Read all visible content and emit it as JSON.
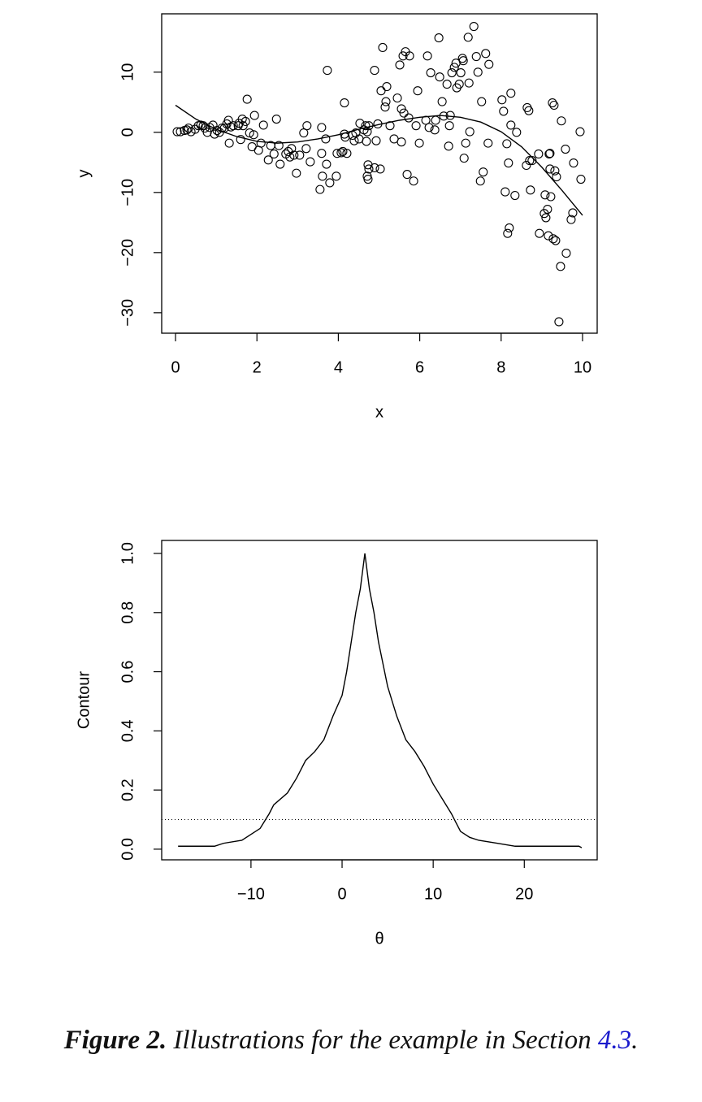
{
  "chart_data": [
    {
      "type": "scatter",
      "x_label": "x",
      "y_label": "y",
      "xlim": [
        -0.34,
        10.36
      ],
      "ylim": [
        -33.4,
        19.7
      ],
      "xticks": [
        0,
        2,
        4,
        6,
        8,
        10
      ],
      "yticks": [
        {
          "value": -30,
          "label": "−30"
        },
        {
          "value": -20,
          "label": "−20"
        },
        {
          "value": -10,
          "label": "−10"
        },
        0,
        10
      ],
      "color": "#000000",
      "x": [
        0.04,
        0.12,
        0.22,
        0.28,
        0.32,
        0.38,
        0.48,
        0.56,
        0.62,
        0.68,
        0.72,
        0.78,
        0.84,
        0.92,
        0.96,
        1.02,
        1.08,
        1.14,
        1.2,
        1.26,
        1.3,
        1.32,
        1.36,
        1.42,
        1.54,
        1.56,
        1.6,
        1.64,
        1.66,
        1.72,
        1.76,
        1.82,
        1.88,
        1.92,
        1.94,
        2.04,
        2.1,
        2.16,
        2.28,
        2.34,
        2.42,
        2.48,
        2.54,
        2.57,
        2.71,
        2.77,
        2.81,
        2.85,
        2.91,
        2.97,
        3.05,
        3.15,
        3.21,
        3.23,
        3.31,
        3.55,
        3.59,
        3.59,
        3.61,
        3.69,
        3.71,
        3.73,
        3.79,
        3.95,
        3.97,
        4.07,
        4.11,
        4.15,
        4.15,
        4.17,
        4.21,
        4.35,
        4.39,
        4.43,
        4.51,
        4.53,
        4.63,
        4.67,
        4.69,
        4.71,
        4.71,
        4.73,
        4.73,
        4.75,
        4.75,
        4.89,
        4.89,
        4.93,
        4.97,
        5.03,
        5.05,
        5.09,
        5.15,
        5.17,
        5.19,
        5.27,
        5.37,
        5.45,
        5.51,
        5.55,
        5.55,
        5.59,
        5.61,
        5.65,
        5.69,
        5.73,
        5.75,
        5.85,
        5.91,
        5.95,
        5.99,
        6.15,
        6.19,
        6.23,
        6.27,
        6.37,
        6.39,
        6.47,
        6.49,
        6.55,
        6.59,
        6.67,
        6.71,
        6.73,
        6.75,
        6.79,
        6.85,
        6.89,
        6.91,
        6.97,
        7.01,
        7.05,
        7.07,
        7.09,
        7.13,
        7.19,
        7.21,
        7.23,
        7.33,
        7.39,
        7.43,
        7.49,
        7.52,
        7.56,
        7.62,
        7.68,
        7.7,
        8.02,
        8.06,
        8.1,
        8.14,
        8.16,
        8.18,
        8.2,
        8.24,
        8.24,
        8.34,
        8.38,
        8.62,
        8.64,
        8.68,
        8.7,
        8.72,
        8.76,
        8.92,
        8.94,
        9.06,
        9.08,
        9.1,
        9.14,
        9.16,
        9.18,
        9.2,
        9.2,
        9.22,
        9.26,
        9.28,
        9.3,
        9.32,
        9.34,
        9.36,
        9.42,
        9.46,
        9.48,
        9.58,
        9.6,
        9.72,
        9.76,
        9.78,
        9.94,
        9.96
      ],
      "y": [
        0.1,
        0.1,
        0.3,
        0.4,
        0.7,
        0.1,
        0.5,
        1.1,
        1.2,
        1.1,
        0.7,
        0.0,
        0.8,
        1.2,
        -0.3,
        0.3,
        0.0,
        0.7,
        0.7,
        1.4,
        2.0,
        -1.8,
        0.9,
        1.1,
        1.1,
        1.5,
        -1.2,
        2.2,
        1.1,
        1.8,
        5.5,
        -0.1,
        -2.4,
        -0.4,
        2.8,
        -3.0,
        -1.8,
        1.2,
        -4.6,
        -2.2,
        -3.6,
        2.2,
        -2.2,
        -5.3,
        -3.6,
        -3.2,
        -4.1,
        -2.7,
        -3.8,
        -6.8,
        -3.8,
        -0.1,
        -2.7,
        1.1,
        -4.9,
        -9.5,
        0.8,
        -3.5,
        -7.3,
        -1.1,
        -5.3,
        10.3,
        -8.4,
        -7.3,
        -3.5,
        -3.4,
        -3.2,
        4.9,
        -0.3,
        -0.8,
        -3.5,
        -0.5,
        -1.4,
        -0.1,
        -1.1,
        1.5,
        0.4,
        1.1,
        -1.5,
        0.1,
        -7.3,
        -7.8,
        -5.4,
        1.1,
        -6.1,
        -5.9,
        10.3,
        -1.4,
        1.4,
        -6.1,
        6.9,
        14.1,
        4.2,
        5.1,
        7.6,
        1.1,
        -1.1,
        5.7,
        11.2,
        3.9,
        -1.6,
        12.7,
        3.2,
        13.4,
        -7.0,
        2.4,
        12.7,
        -8.1,
        1.1,
        6.9,
        -1.8,
        2.0,
        12.7,
        0.8,
        9.9,
        0.4,
        2.0,
        15.7,
        9.2,
        5.1,
        2.7,
        8.0,
        -2.3,
        1.1,
        2.8,
        9.9,
        10.8,
        11.5,
        7.4,
        8.0,
        9.9,
        12.3,
        11.9,
        -4.3,
        -1.8,
        15.8,
        8.2,
        0.1,
        17.6,
        12.6,
        10.0,
        -8.1,
        5.1,
        -6.6,
        13.1,
        -1.8,
        11.3,
        5.4,
        3.5,
        -9.9,
        -1.9,
        -16.8,
        -5.1,
        -15.9,
        6.5,
        1.2,
        -10.5,
        0.0,
        -5.5,
        4.1,
        3.6,
        -4.7,
        -9.6,
        -4.7,
        -3.6,
        -16.8,
        -13.5,
        -10.4,
        -14.2,
        -12.8,
        -17.2,
        -3.6,
        -6.1,
        -3.5,
        -10.7,
        4.9,
        -17.7,
        4.5,
        -6.4,
        -18.0,
        -7.4,
        -31.5,
        -22.3,
        1.9,
        -2.8,
        -20.1,
        -14.5,
        -13.4,
        -5.1,
        0.1,
        -7.8
      ],
      "curve": {
        "x": [
          0,
          0.5,
          1,
          1.5,
          2,
          2.5,
          3,
          3.5,
          4,
          4.5,
          5,
          5.5,
          6,
          6.5,
          7,
          7.5,
          8,
          8.5,
          9,
          9.5,
          10
        ],
        "y": [
          4.5,
          2.2,
          0.5,
          -0.7,
          -1.5,
          -1.8,
          -1.6,
          -1.1,
          -0.4,
          0.5,
          1.3,
          2.0,
          2.5,
          2.8,
          2.5,
          1.7,
          0.1,
          -2.4,
          -5.8,
          -9.7,
          -13.8
        ]
      }
    },
    {
      "type": "line",
      "x_label": "θ",
      "y_label": "Contour",
      "xlim": [
        -19.8,
        28.0
      ],
      "ylim": [
        -0.036,
        1.044
      ],
      "xticks": [
        {
          "value": -10,
          "label": "−10"
        },
        0,
        10,
        20
      ],
      "yticks": [
        {
          "value": 0,
          "label": "0.0"
        },
        0.2,
        0.4,
        0.6,
        0.8,
        {
          "value": 1,
          "label": "1.0"
        }
      ],
      "color": "#000000",
      "hline": 0.1,
      "x": [
        -18,
        -14,
        -13,
        -11,
        -10,
        -9,
        -8,
        -7.5,
        -6,
        -5,
        -4,
        -3,
        -2,
        -1,
        0,
        0.5,
        1,
        1.5,
        2,
        2.5,
        3,
        3.5,
        4,
        5,
        6,
        7,
        8,
        9,
        10,
        11,
        12,
        12.5,
        13,
        14,
        15,
        17,
        19,
        26,
        26.3
      ],
      "y": [
        0.01,
        0.01,
        0.02,
        0.03,
        0.05,
        0.07,
        0.12,
        0.15,
        0.19,
        0.24,
        0.3,
        0.33,
        0.37,
        0.45,
        0.52,
        0.6,
        0.7,
        0.8,
        0.88,
        1.0,
        0.88,
        0.8,
        0.7,
        0.55,
        0.45,
        0.37,
        0.33,
        0.28,
        0.22,
        0.17,
        0.12,
        0.09,
        0.06,
        0.04,
        0.03,
        0.02,
        0.01,
        0.01,
        0.005
      ]
    }
  ],
  "caption": {
    "label": "Figure 2.",
    "text": "Illustrations for the example in Section",
    "ref": "4.3",
    "end": "."
  }
}
